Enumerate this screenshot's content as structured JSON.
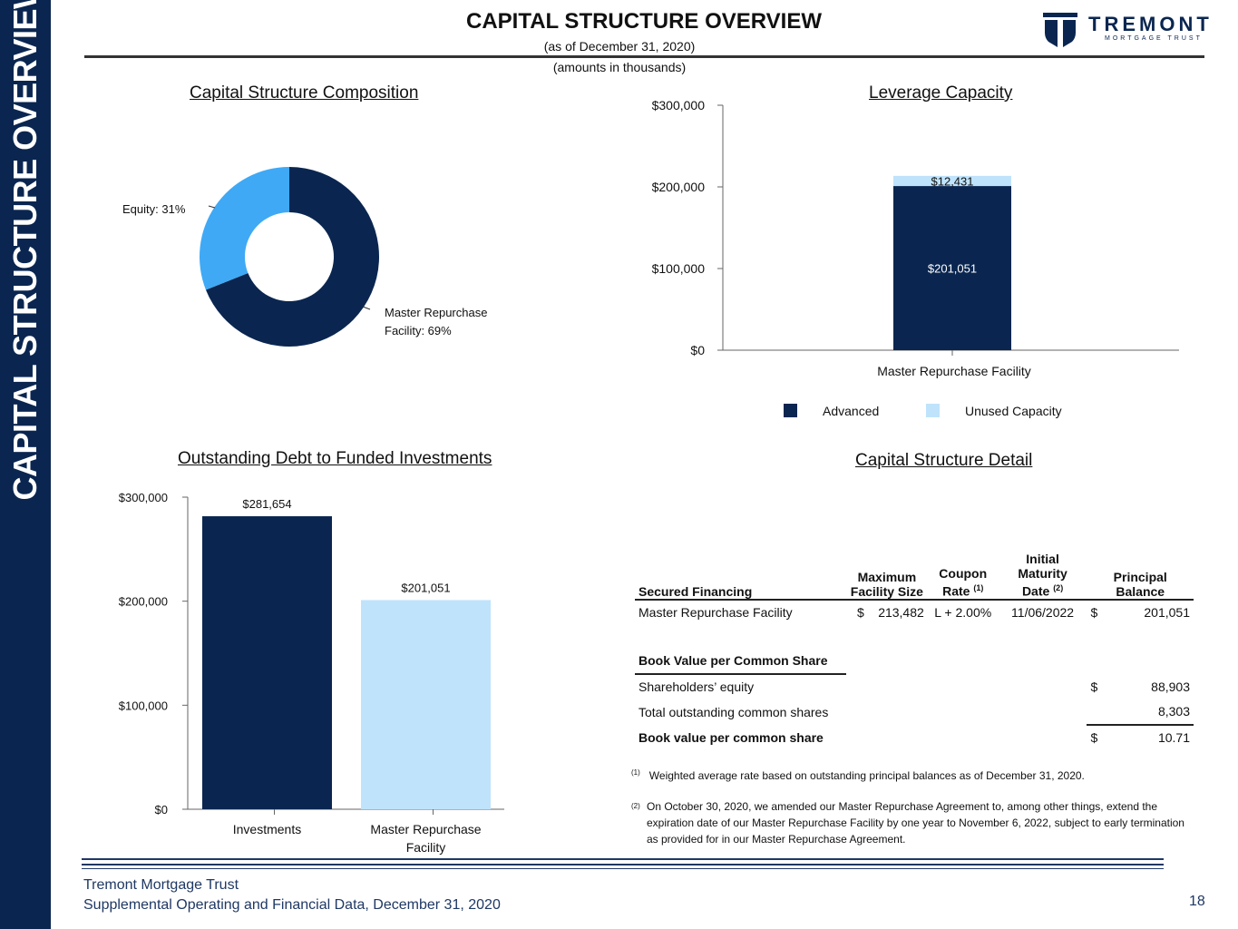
{
  "sidebar": {
    "label": "CAPITAL STRUCTURE OVERVIEW"
  },
  "header": {
    "title": "CAPITAL STRUCTURE OVERVIEW",
    "subtitle1": "(as of December 31, 2020)",
    "subtitle2": "(amounts in thousands)",
    "logo_word": "TREMONT",
    "logo_sub": "MORTGAGE TRUST"
  },
  "colors": {
    "navy": "#0a2650",
    "blue": "#3fa9f5",
    "light_blue": "#bfe3fb"
  },
  "sections": {
    "composition": "Capital Structure Composition",
    "leverage": "Leverage Capacity",
    "outstanding": "Outstanding Debt to Funded Investments",
    "detail": "Capital Structure Detail"
  },
  "chart_data": [
    {
      "type": "pie",
      "title": "Capital Structure Composition",
      "labels": [
        "Master Repurchase Facility: 69%",
        "Equity: 31%"
      ],
      "values": [
        69,
        31
      ],
      "label_lines": [
        "Master Repurchase",
        "Facility: 69%"
      ]
    },
    {
      "type": "bar",
      "title": "Leverage Capacity",
      "categories": [
        "Master Repurchase Facility"
      ],
      "series": [
        {
          "name": "Advanced",
          "values": [
            201051
          ],
          "labels": [
            "$201,051"
          ]
        },
        {
          "name": "Unused Capacity",
          "values": [
            12431
          ],
          "labels": [
            "$12,431"
          ]
        }
      ],
      "ylim": [
        0,
        300000
      ],
      "yticks": [
        "$0",
        "$100,000",
        "$200,000",
        "$300,000"
      ],
      "legend": [
        "Advanced",
        "Unused Capacity"
      ]
    },
    {
      "type": "bar",
      "title": "Outstanding Debt to Funded Investments",
      "categories": [
        "Investments",
        "Master Repurchase Facility"
      ],
      "category_lines": [
        [
          "Investments"
        ],
        [
          "Master Repurchase",
          "Facility"
        ]
      ],
      "values": [
        281654,
        201051
      ],
      "labels": [
        "$281,654",
        "$201,051"
      ],
      "ylim": [
        0,
        300000
      ],
      "yticks": [
        "$0",
        "$100,000",
        "$200,000",
        "$300,000"
      ]
    }
  ],
  "detail_table": {
    "headers": {
      "col1": "Secured Financing",
      "col2_l1": "Maximum",
      "col2_l2": "Facility Size",
      "col3_l1": "Coupon",
      "col3_l2": "Rate",
      "col3_sup": "(1)",
      "col4_l1": "Initial",
      "col4_l2": "Maturity",
      "col4_l3": "Date",
      "col4_sup": "(2)",
      "col5_l1": "Principal",
      "col5_l2": "Balance"
    },
    "row": {
      "name": "Master Repurchase Facility",
      "dollar1": "$",
      "size": "213,482",
      "rate": "L + 2.00%",
      "date": "11/06/2022",
      "dollar2": "$",
      "balance": "201,051"
    },
    "book_value": {
      "header": "Book Value per Common Share",
      "equity_label": "Shareholders’ equity",
      "equity_dollar": "$",
      "equity_value": "88,903",
      "shares_label": "Total outstanding common shares",
      "shares_value": "8,303",
      "bvps_label": "Book value per common share",
      "bvps_dollar": "$",
      "bvps_value": "10.71"
    }
  },
  "footnotes": {
    "f1_mark": "(1)",
    "f1": "Weighted average rate based on outstanding principal balances as of December 31, 2020.",
    "f2_mark": "(2)",
    "f2": "On October 30, 2020, we amended our Master Repurchase Agreement to, among other things, extend the expiration date of our Master Repurchase Facility by one year to November 6, 2022, subject to early termination as provided for in our Master Repurchase Agreement."
  },
  "footer": {
    "line1": "Tremont Mortgage Trust",
    "line2": "Supplemental Operating and Financial Data, December 31, 2020",
    "page": "18"
  }
}
